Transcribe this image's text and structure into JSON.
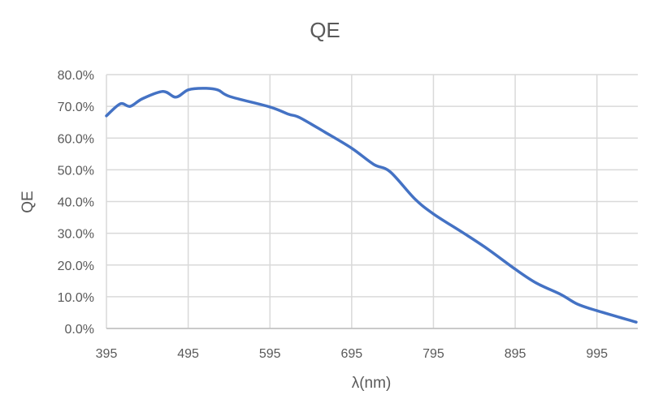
{
  "chart_data": {
    "type": "line",
    "title": "QE",
    "xlabel": "λ(nm)",
    "ylabel": "QE",
    "xlim": [
      395,
      1045
    ],
    "ylim": [
      0,
      80
    ],
    "x_ticks": [
      395,
      495,
      595,
      695,
      795,
      895,
      995
    ],
    "y_ticks": [
      0,
      10,
      20,
      30,
      40,
      50,
      60,
      70,
      80
    ],
    "y_tick_labels": [
      "0.0%",
      "10.0%",
      "20.0%",
      "30.0%",
      "40.0%",
      "50.0%",
      "60.0%",
      "70.0%",
      "80.0%"
    ],
    "grid": true,
    "legend": "none",
    "line_color": "#4472C4",
    "series": [
      {
        "x": [
          395,
          412,
          424,
          439,
          464,
          480,
          495,
          513,
          531,
          546,
          595,
          618,
          631,
          662,
          695,
          722,
          742,
          772,
          795,
          831,
          861,
          895,
          921,
          951,
          971,
          995,
          1043
        ],
        "y": [
          67.0,
          70.8,
          70.0,
          72.4,
          74.7,
          72.9,
          75.2,
          75.7,
          75.2,
          73.1,
          69.8,
          67.5,
          66.5,
          61.9,
          56.8,
          51.7,
          49.4,
          40.9,
          36.1,
          30.2,
          25.1,
          18.7,
          14.3,
          10.7,
          7.7,
          5.6,
          2.0
        ]
      }
    ]
  }
}
